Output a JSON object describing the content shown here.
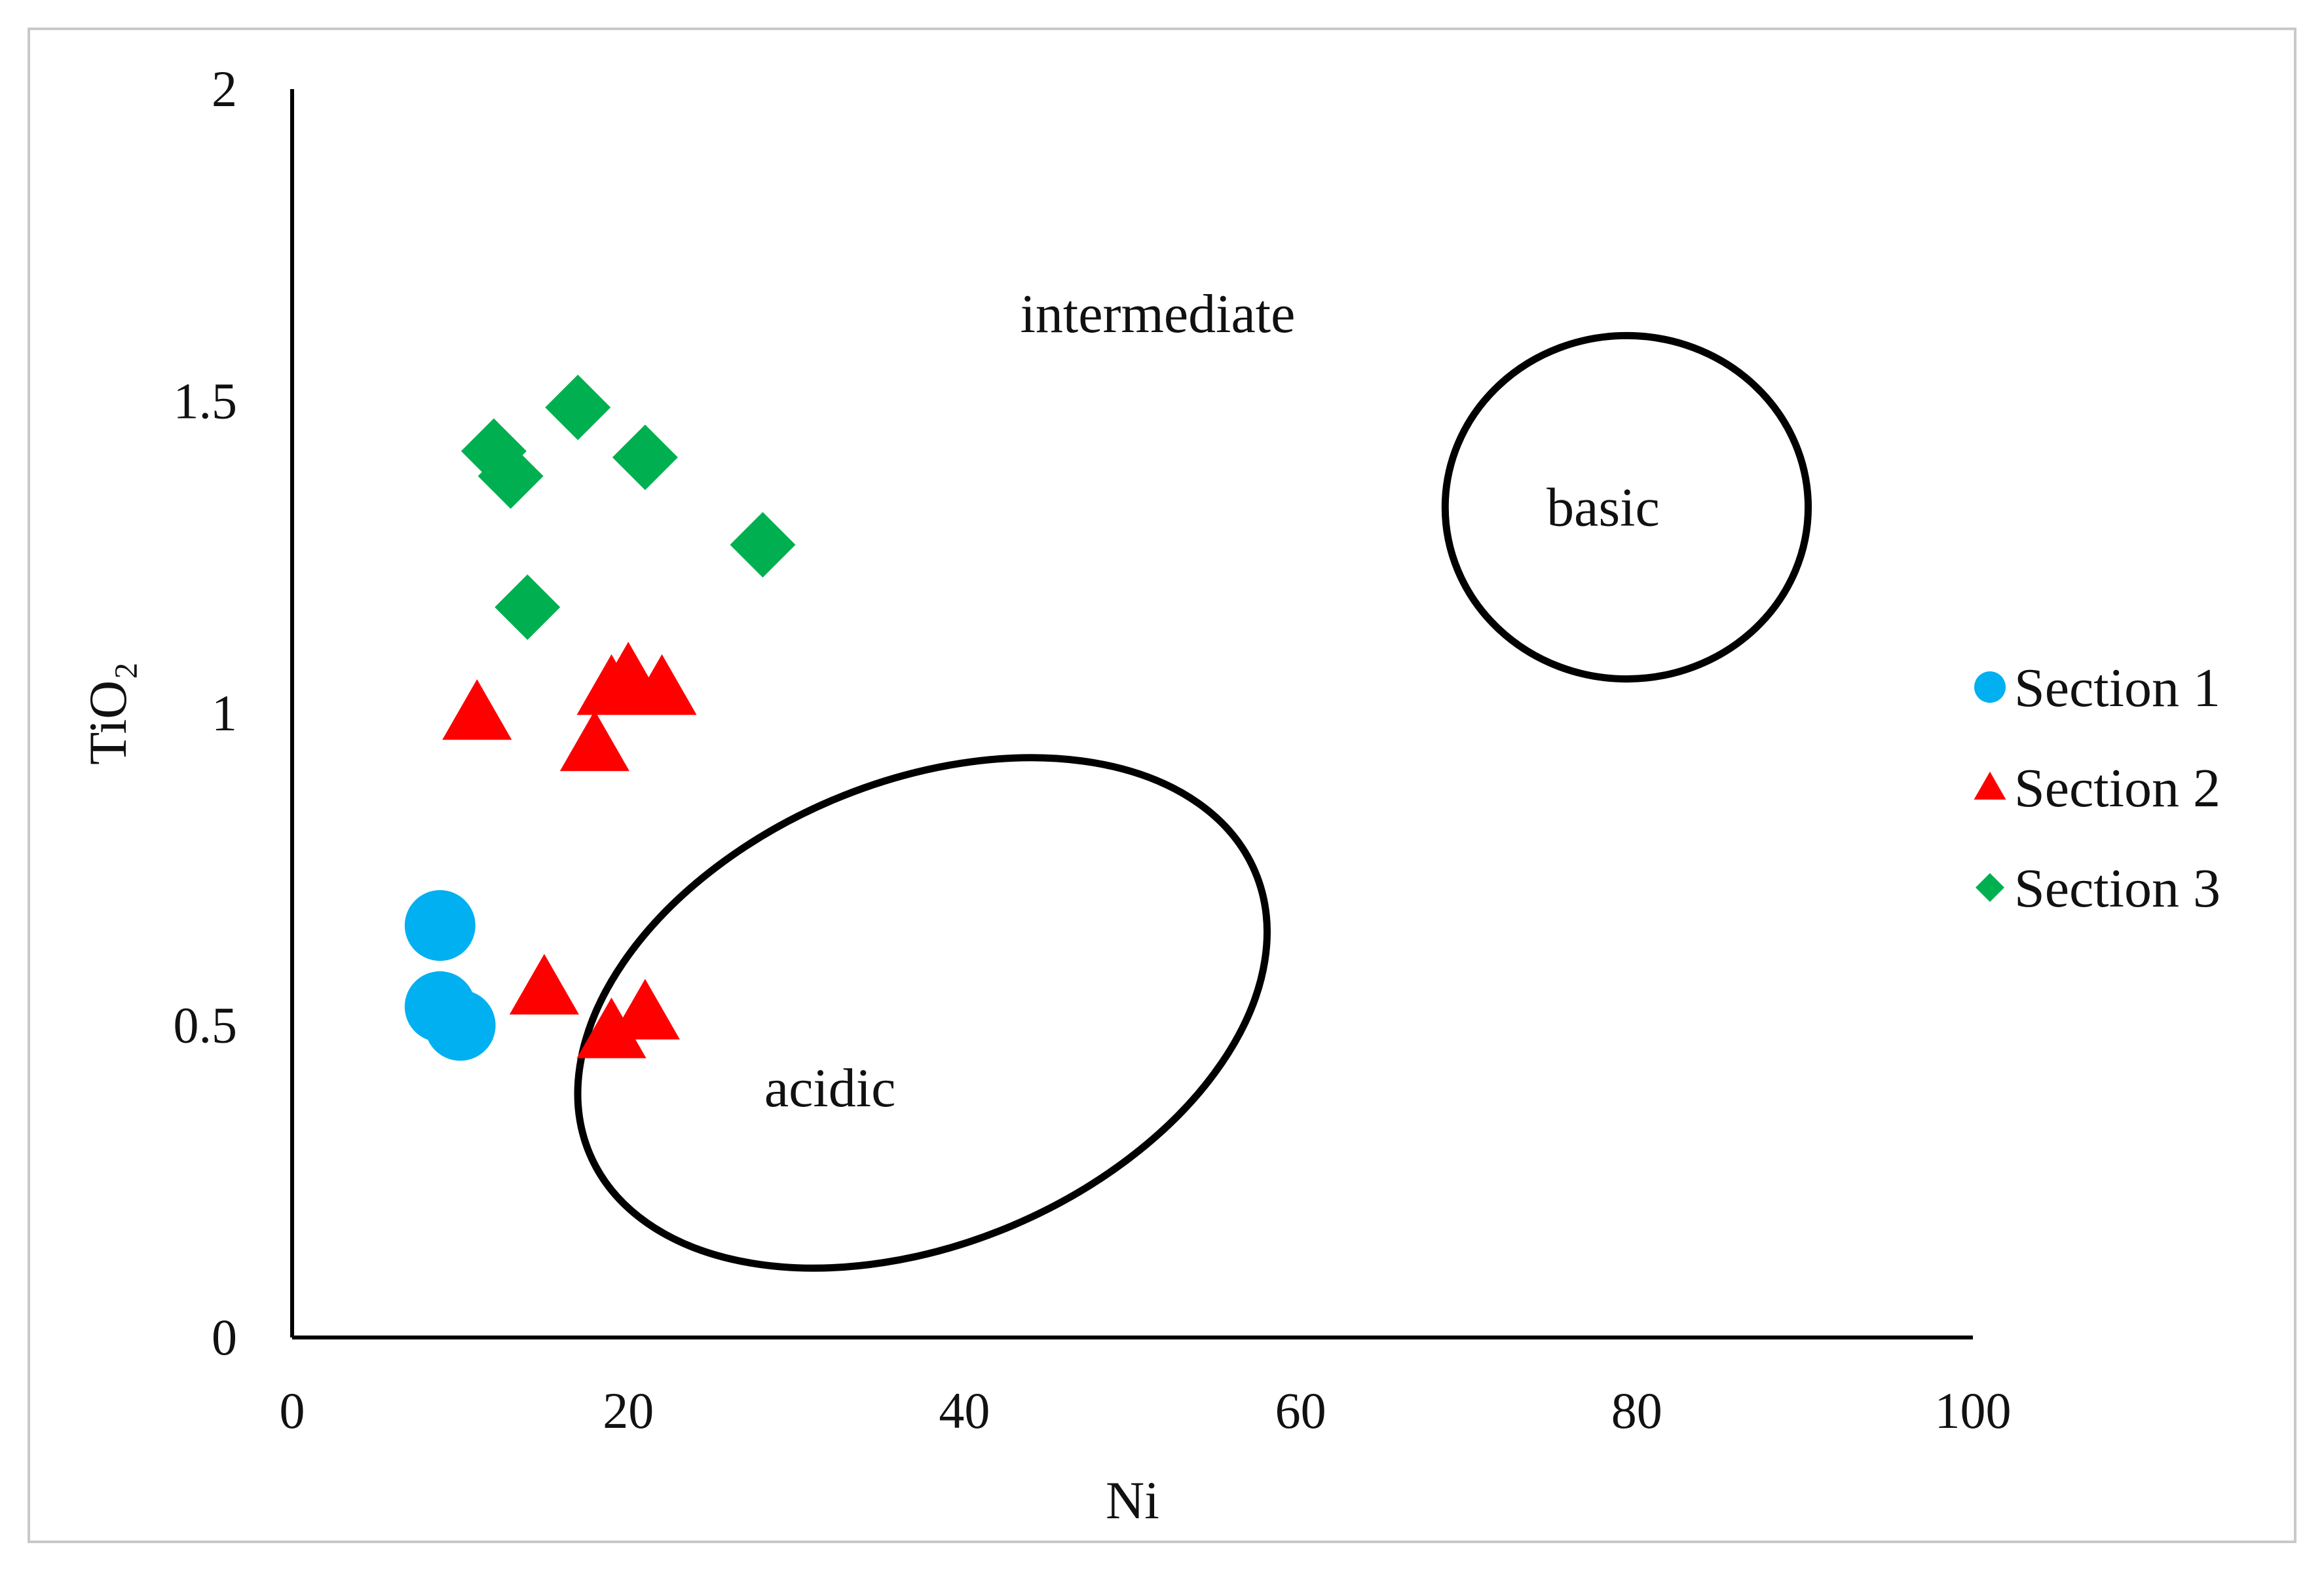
{
  "chart_data": {
    "type": "scatter",
    "xlabel": "Ni",
    "ylabel": "TiO₂",
    "xlim": [
      0,
      100
    ],
    "ylim": [
      0,
      2
    ],
    "x_ticks": [
      0,
      20,
      40,
      60,
      80,
      100
    ],
    "y_ticks": [
      0,
      0.5,
      1,
      1.5,
      2
    ],
    "grid": false,
    "legend_position": "right",
    "series": [
      {
        "name": "Section 1",
        "marker": "circle",
        "color": "#00B0F0",
        "points": [
          {
            "x": 8.8,
            "y": 0.66
          },
          {
            "x": 8.8,
            "y": 0.53
          },
          {
            "x": 10.0,
            "y": 0.5
          }
        ]
      },
      {
        "name": "Section 2",
        "marker": "triangle",
        "color": "#FF0000",
        "points": [
          {
            "x": 11.0,
            "y": 1.0
          },
          {
            "x": 18.0,
            "y": 0.95
          },
          {
            "x": 19.0,
            "y": 1.04
          },
          {
            "x": 20.0,
            "y": 1.06
          },
          {
            "x": 22.0,
            "y": 1.04
          },
          {
            "x": 15.0,
            "y": 0.56
          },
          {
            "x": 19.0,
            "y": 0.49
          },
          {
            "x": 21.0,
            "y": 0.52
          }
        ]
      },
      {
        "name": "Section 3",
        "marker": "diamond",
        "color": "#00B050",
        "points": [
          {
            "x": 12.0,
            "y": 1.42
          },
          {
            "x": 13.0,
            "y": 1.38
          },
          {
            "x": 17.0,
            "y": 1.49
          },
          {
            "x": 21.0,
            "y": 1.41
          },
          {
            "x": 28.0,
            "y": 1.27
          },
          {
            "x": 14.0,
            "y": 1.17
          }
        ]
      }
    ],
    "regions": [
      {
        "label": "intermediate",
        "shape": "none",
        "label_at": [
          51.5,
          1.64
        ]
      },
      {
        "label": "basic",
        "shape": "ellipse",
        "center": [
          79.4,
          1.33
        ],
        "radius_x": 10.8,
        "radius_y": 0.275,
        "label_at": [
          78.0,
          1.33
        ]
      },
      {
        "label": "acidic",
        "shape": "ellipse",
        "center": [
          37.5,
          0.52
        ],
        "radius_x": 21.5,
        "radius_y": 0.37,
        "rotation_deg": -23,
        "label_at": [
          32.0,
          0.4
        ]
      }
    ]
  }
}
